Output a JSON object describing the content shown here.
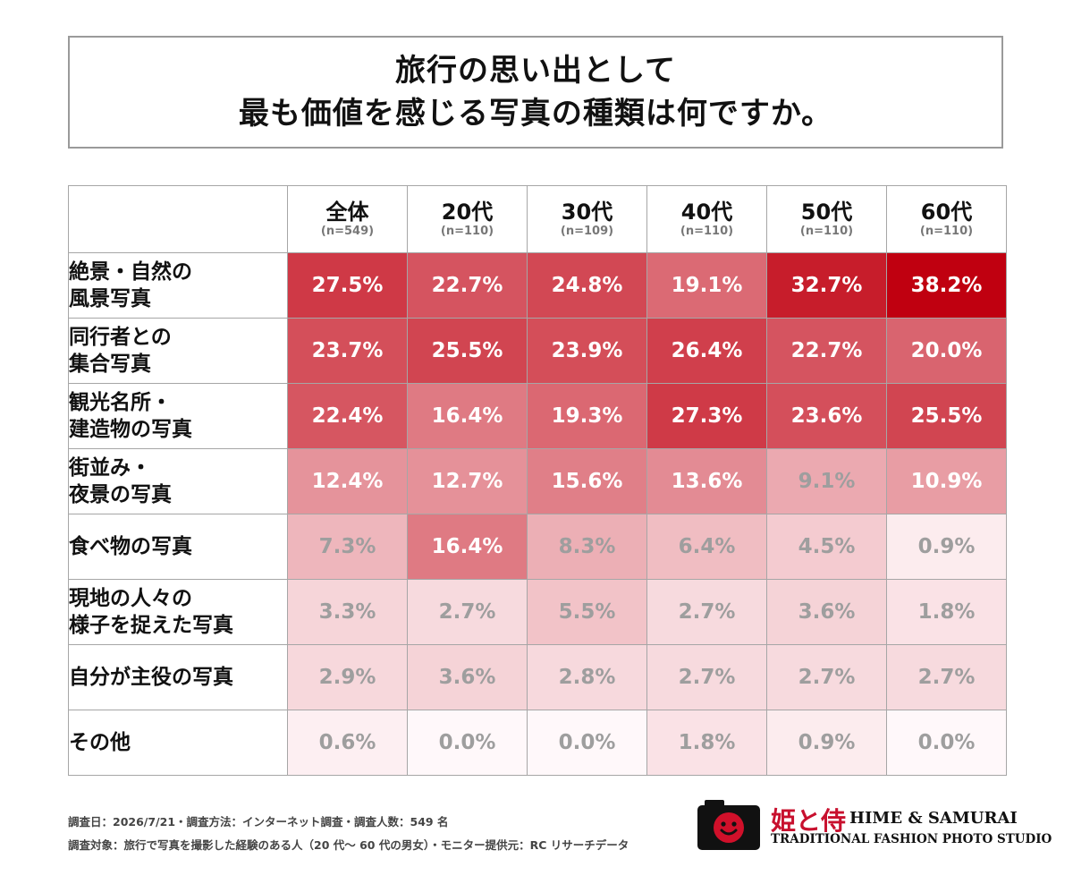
{
  "title": {
    "line1": "旅行の思い出として",
    "line2": "最も価値を感じる写真の種類は何ですか。"
  },
  "chart_data": {
    "type": "heatmap",
    "value_suffix": "%",
    "columns": [
      {
        "label": "全体",
        "n": "(n=549)"
      },
      {
        "label": "20代",
        "n": "(n=110)"
      },
      {
        "label": "30代",
        "n": "(n=109)"
      },
      {
        "label": "40代",
        "n": "(n=110)"
      },
      {
        "label": "50代",
        "n": "(n=110)"
      },
      {
        "label": "60代",
        "n": "(n=110)"
      }
    ],
    "rows": [
      {
        "label": "絶景・自然の\n風景写真",
        "values": [
          27.5,
          22.7,
          24.8,
          19.1,
          32.7,
          38.2
        ]
      },
      {
        "label": "同行者との\n集合写真",
        "values": [
          23.7,
          25.5,
          23.9,
          26.4,
          22.7,
          20.0
        ]
      },
      {
        "label": "観光名所・\n建造物の写真",
        "values": [
          22.4,
          16.4,
          19.3,
          27.3,
          23.6,
          25.5
        ]
      },
      {
        "label": "街並み・\n夜景の写真",
        "values": [
          12.4,
          12.7,
          15.6,
          13.6,
          9.1,
          10.9
        ]
      },
      {
        "label": "食べ物の写真",
        "values": [
          7.3,
          16.4,
          8.3,
          6.4,
          4.5,
          0.9
        ]
      },
      {
        "label": "現地の人々の\n様子を捉えた写真",
        "values": [
          3.3,
          2.7,
          5.5,
          2.7,
          3.6,
          1.8
        ]
      },
      {
        "label": "自分が主役の写真",
        "values": [
          2.9,
          3.6,
          2.8,
          2.7,
          2.7,
          2.7
        ]
      },
      {
        "label": "その他",
        "values": [
          0.6,
          0.0,
          0.0,
          1.8,
          0.9,
          0.0
        ]
      }
    ],
    "color_scale": {
      "low": "#fff8fa",
      "high": "#c00010"
    }
  },
  "footer": {
    "line1": "調査日：2026/7/21・調査方法：インターネット調査・調査人数：549 名",
    "line2": "調査対象：旅行で写真を撮影した経験のある人（20 代～ 60 代の男女）・モニター提供元：RC リサーチデータ"
  },
  "logo": {
    "kanji": "姫と侍",
    "brand": "HIME & SAMURAI",
    "subtitle": "TRADITIONAL FASHION PHOTO STUDIO"
  }
}
